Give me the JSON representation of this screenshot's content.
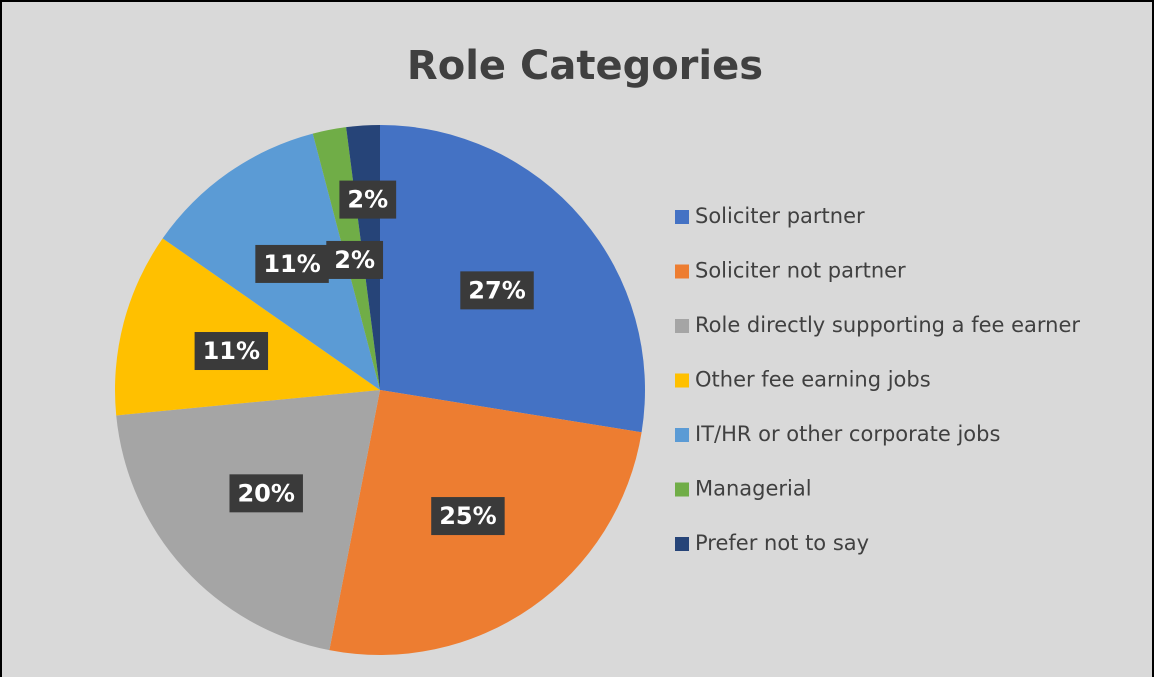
{
  "chart_data": {
    "type": "pie",
    "title": "Role Categories",
    "categories": [
      "Soliciter partner",
      "Soliciter not partner",
      "Role directly supporting a fee earner",
      "Other fee earning jobs",
      "IT/HR or other corporate jobs",
      "Managerial",
      "Prefer not to say"
    ],
    "values": [
      27,
      25,
      20,
      11,
      11,
      2,
      2
    ],
    "value_labels": [
      "27%",
      "25%",
      "20%",
      "11%",
      "11%",
      "2%",
      "2%"
    ],
    "colors": [
      "#4472c4",
      "#ed7d31",
      "#a5a5a5",
      "#ffc000",
      "#5b9bd5",
      "#70ad47",
      "#264478"
    ],
    "legend": "right"
  }
}
